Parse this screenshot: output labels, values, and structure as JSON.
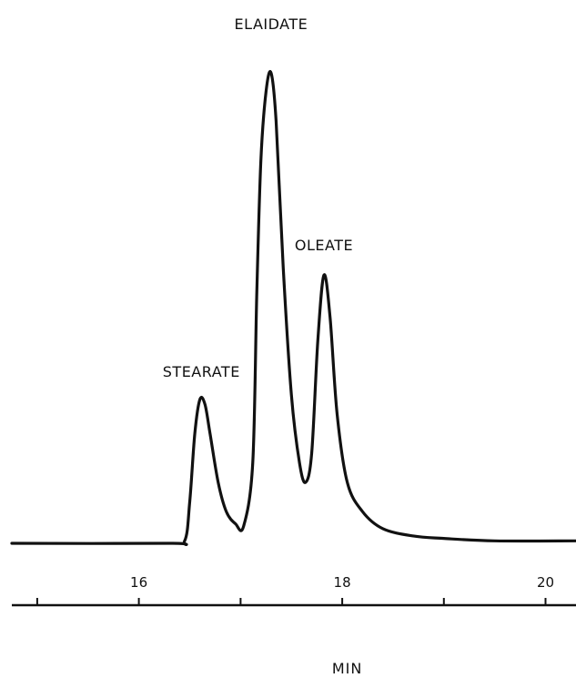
{
  "chart_data": {
    "type": "line",
    "title": "",
    "xlabel": "MIN",
    "ylabel": "",
    "xlim": [
      14.75,
      20.3
    ],
    "ylim": [
      0,
      1
    ],
    "x_ticks": [
      15,
      16,
      17,
      18,
      19,
      20
    ],
    "x_tick_labels": [
      {
        "x": 16,
        "label": "16"
      },
      {
        "x": 18,
        "label": "18"
      },
      {
        "x": 20,
        "label": "20"
      }
    ],
    "grid": false,
    "baseline": 0.035,
    "peaks": [
      {
        "name": "STEARATE",
        "x": 16.65,
        "height": 0.32
      },
      {
        "name": "ELAIDATE",
        "x": 17.3,
        "height": 1.0
      },
      {
        "name": "OLEATE",
        "x": 17.82,
        "height": 0.585
      }
    ],
    "series": [
      {
        "x": [
          14.75,
          16.3,
          16.45,
          16.5,
          16.55,
          16.6,
          16.65,
          16.7,
          16.78,
          16.86,
          16.95,
          17.03,
          17.12,
          17.16,
          17.2,
          17.25,
          17.3,
          17.35,
          17.42,
          17.5,
          17.58,
          17.64,
          17.7,
          17.76,
          17.82,
          17.88,
          17.95,
          18.05,
          18.2,
          18.4,
          18.7,
          19.0,
          19.5,
          20.3
        ],
        "values": [
          0.035,
          0.035,
          0.04,
          0.12,
          0.26,
          0.33,
          0.32,
          0.26,
          0.16,
          0.1,
          0.075,
          0.07,
          0.2,
          0.55,
          0.82,
          0.96,
          1.0,
          0.9,
          0.6,
          0.34,
          0.2,
          0.16,
          0.22,
          0.45,
          0.585,
          0.5,
          0.3,
          0.16,
          0.1,
          0.065,
          0.05,
          0.045,
          0.04,
          0.04
        ]
      }
    ]
  }
}
